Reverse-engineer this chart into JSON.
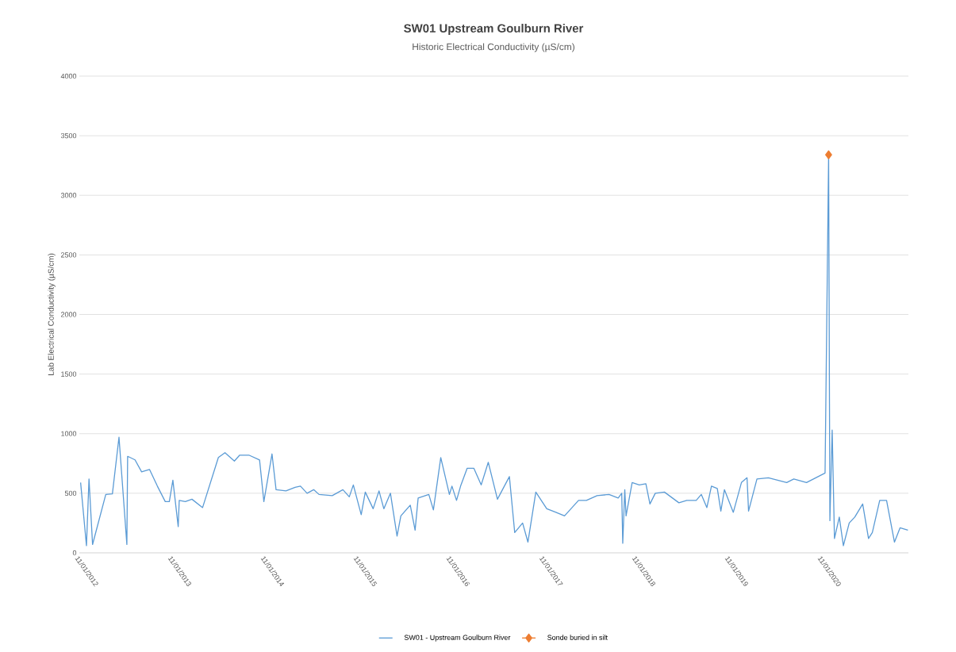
{
  "chart_data": {
    "type": "line",
    "title": "SW01 Upstream Goulburn River",
    "subtitle": "Historic Electrical Conductivity (µS/cm)",
    "ylabel": "Lab Electrical Conductivity (µS/cm)",
    "xlim": [
      "2012-01-11",
      "2020-12-16"
    ],
    "ylim": [
      0,
      4000
    ],
    "yticks": [
      0,
      500,
      1000,
      1500,
      2000,
      2500,
      3000,
      3500,
      4000
    ],
    "xticks": [
      {
        "value": "2012-01-11",
        "label": "11/01/2012"
      },
      {
        "value": "2013-01-11",
        "label": "11/01/2013"
      },
      {
        "value": "2014-01-11",
        "label": "11/01/2014"
      },
      {
        "value": "2015-01-11",
        "label": "11/01/2015"
      },
      {
        "value": "2016-01-11",
        "label": "11/01/2016"
      },
      {
        "value": "2017-01-11",
        "label": "11/01/2017"
      },
      {
        "value": "2018-01-11",
        "label": "11/01/2018"
      },
      {
        "value": "2019-01-11",
        "label": "11/01/2019"
      },
      {
        "value": "2020-01-11",
        "label": "11/01/2020"
      }
    ],
    "grid": "y",
    "legend": "bottom",
    "series": [
      {
        "name": "SW01 - Upstream Goulburn River",
        "color": "#5b9bd5",
        "marker": "none",
        "x": [
          "2012-01-16",
          "2012-02-08",
          "2012-02-18",
          "2012-03-03",
          "2012-04-24",
          "2012-05-20",
          "2012-06-15",
          "2012-07-16",
          "2012-07-19",
          "2012-08-17",
          "2012-09-12",
          "2012-10-13",
          "2012-11-13",
          "2012-12-14",
          "2012-12-30",
          "2013-01-13",
          "2013-02-03",
          "2013-02-07",
          "2013-03-03",
          "2013-03-29",
          "2013-05-10",
          "2013-07-11",
          "2013-08-06",
          "2013-09-12",
          "2013-10-03",
          "2013-11-08",
          "2013-12-20",
          "2014-01-06",
          "2014-02-07",
          "2014-02-23",
          "2014-04-03",
          "2014-05-09",
          "2014-05-30",
          "2014-06-25",
          "2014-07-21",
          "2014-08-11",
          "2014-10-02",
          "2014-11-13",
          "2014-12-08",
          "2014-12-24",
          "2015-01-24",
          "2015-02-09",
          "2015-03-12",
          "2015-04-04",
          "2015-04-23",
          "2015-05-19",
          "2015-06-14",
          "2015-06-29",
          "2015-08-05",
          "2015-08-24",
          "2015-09-05",
          "2015-10-17",
          "2015-11-04",
          "2015-12-03",
          "2016-01-06",
          "2016-01-16",
          "2016-02-03",
          "2016-02-19",
          "2016-03-16",
          "2016-04-11",
          "2016-05-10",
          "2016-06-07",
          "2016-07-13",
          "2016-08-29",
          "2016-09-19",
          "2016-10-20",
          "2016-11-10",
          "2016-12-11",
          "2017-01-23",
          "2017-02-28",
          "2017-04-03",
          "2017-05-28",
          "2017-06-28",
          "2017-08-09",
          "2017-09-25",
          "2017-10-31",
          "2017-11-14",
          "2017-11-18",
          "2017-11-26",
          "2017-12-01",
          "2017-12-25",
          "2018-01-22",
          "2018-02-17",
          "2018-03-05",
          "2018-03-26",
          "2018-05-01",
          "2018-06-27",
          "2018-07-28",
          "2018-09-03",
          "2018-09-23",
          "2018-10-15",
          "2018-11-02",
          "2018-11-25",
          "2018-12-09",
          "2018-12-23",
          "2019-01-27",
          "2019-02-28",
          "2019-03-22",
          "2019-03-28",
          "2019-04-30",
          "2019-06-14",
          "2019-08-25",
          "2019-09-22",
          "2019-11-11",
          "2020-01-23",
          "2020-02-06",
          "2020-02-11",
          "2020-02-20",
          "2020-02-29",
          "2020-03-19",
          "2020-04-04",
          "2020-04-27",
          "2020-05-19",
          "2020-06-19",
          "2020-07-12",
          "2020-07-27",
          "2020-08-25",
          "2020-09-21",
          "2020-10-22",
          "2020-11-13",
          "2020-12-14"
        ],
        "values": [
          590,
          60,
          620,
          70,
          490,
          495,
          970,
          70,
          810,
          780,
          680,
          700,
          560,
          430,
          430,
          610,
          220,
          440,
          430,
          450,
          380,
          800,
          840,
          770,
          820,
          820,
          780,
          430,
          830,
          530,
          520,
          550,
          560,
          500,
          530,
          490,
          480,
          530,
          470,
          570,
          320,
          510,
          370,
          520,
          370,
          500,
          140,
          310,
          400,
          190,
          460,
          490,
          360,
          800,
          490,
          560,
          440,
          560,
          710,
          710,
          570,
          760,
          450,
          640,
          170,
          250,
          90,
          510,
          370,
          340,
          310,
          440,
          440,
          480,
          490,
          460,
          500,
          80,
          530,
          310,
          590,
          570,
          580,
          410,
          500,
          510,
          420,
          440,
          440,
          490,
          380,
          560,
          540,
          350,
          530,
          340,
          590,
          630,
          350,
          620,
          630,
          590,
          620,
          590,
          670,
          3340,
          270,
          1030,
          120,
          300,
          60,
          250,
          300,
          410,
          120,
          170,
          440,
          440,
          90,
          210,
          190
        ]
      },
      {
        "name": "Sonde buried in silt",
        "color": "#ed7d31",
        "marker": "diamond",
        "x": [
          "2020-02-06"
        ],
        "values": [
          3340
        ]
      }
    ]
  }
}
